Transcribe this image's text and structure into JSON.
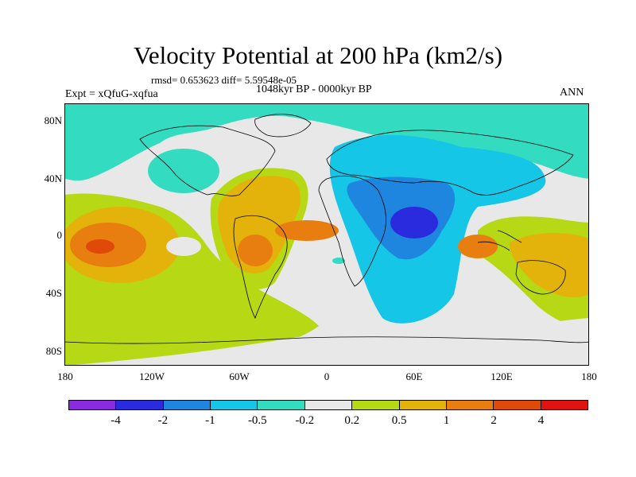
{
  "title": "Velocity Potential at 200 hPa (km2/s)",
  "stats": "rmsd= 0.653623 diff= 5.59548e-05",
  "experiment": "Expt = xQfuG-xqfua",
  "period": "1048kyr BP - 0000kyr BP",
  "season": "ANN",
  "axes": {
    "y_ticks": [
      "80N",
      "40N",
      "0",
      "40S",
      "80S"
    ],
    "x_ticks": [
      "180",
      "120W",
      "60W",
      "0",
      "60E",
      "120E",
      "180"
    ]
  },
  "colorbar": {
    "colors": [
      "#8a2be2",
      "#2a2adf",
      "#1f86e0",
      "#16c6e6",
      "#33dcc0",
      "#e8e8e8",
      "#b6d815",
      "#e3b30c",
      "#e87d10",
      "#e04a08",
      "#e01212"
    ],
    "labels": [
      "-4",
      "-2",
      "-1",
      "-0.5",
      "-0.2",
      "0.2",
      "0.5",
      "1",
      "2",
      "4"
    ]
  }
}
